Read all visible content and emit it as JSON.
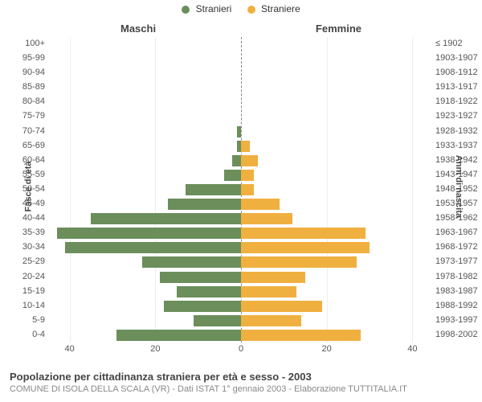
{
  "legend": {
    "male": "Stranieri",
    "female": "Straniere"
  },
  "colors": {
    "male": "#6b8e5a",
    "female": "#f0b040",
    "grid": "#eeeeee",
    "centerline": "#888888",
    "background": "#ffffff",
    "text": "#333333"
  },
  "side_titles": {
    "left": "Maschi",
    "right": "Femmine"
  },
  "axis": {
    "left_label": "Fasce di età",
    "right_label": "Anni di nascita",
    "x_max": 45,
    "x_ticks_left": [
      40,
      20,
      0
    ],
    "x_ticks_right": [
      0,
      20,
      40
    ]
  },
  "rows": [
    {
      "age": "100+",
      "birth": "≤ 1902",
      "m": 0,
      "f": 0
    },
    {
      "age": "95-99",
      "birth": "1903-1907",
      "m": 0,
      "f": 0
    },
    {
      "age": "90-94",
      "birth": "1908-1912",
      "m": 0,
      "f": 0
    },
    {
      "age": "85-89",
      "birth": "1913-1917",
      "m": 0,
      "f": 0
    },
    {
      "age": "80-84",
      "birth": "1918-1922",
      "m": 0,
      "f": 0
    },
    {
      "age": "75-79",
      "birth": "1923-1927",
      "m": 0,
      "f": 0
    },
    {
      "age": "70-74",
      "birth": "1928-1932",
      "m": 1,
      "f": 0
    },
    {
      "age": "65-69",
      "birth": "1933-1937",
      "m": 1,
      "f": 2
    },
    {
      "age": "60-64",
      "birth": "1938-1942",
      "m": 2,
      "f": 4
    },
    {
      "age": "55-59",
      "birth": "1943-1947",
      "m": 4,
      "f": 3
    },
    {
      "age": "50-54",
      "birth": "1948-1952",
      "m": 13,
      "f": 3
    },
    {
      "age": "45-49",
      "birth": "1953-1957",
      "m": 17,
      "f": 9
    },
    {
      "age": "40-44",
      "birth": "1958-1962",
      "m": 35,
      "f": 12
    },
    {
      "age": "35-39",
      "birth": "1963-1967",
      "m": 43,
      "f": 29
    },
    {
      "age": "30-34",
      "birth": "1968-1972",
      "m": 41,
      "f": 30
    },
    {
      "age": "25-29",
      "birth": "1973-1977",
      "m": 23,
      "f": 27
    },
    {
      "age": "20-24",
      "birth": "1978-1982",
      "m": 19,
      "f": 15
    },
    {
      "age": "15-19",
      "birth": "1983-1987",
      "m": 15,
      "f": 13
    },
    {
      "age": "10-14",
      "birth": "1988-1992",
      "m": 18,
      "f": 19
    },
    {
      "age": "5-9",
      "birth": "1993-1997",
      "m": 11,
      "f": 14
    },
    {
      "age": "0-4",
      "birth": "1998-2002",
      "m": 29,
      "f": 28
    }
  ],
  "footer": {
    "title": "Popolazione per cittadinanza straniera per età e sesso - 2003",
    "sub": "COMUNE DI ISOLA DELLA SCALA (VR) - Dati ISTAT 1° gennaio 2003 - Elaborazione TUTTITALIA.IT"
  },
  "chart_type": "population-pyramid"
}
